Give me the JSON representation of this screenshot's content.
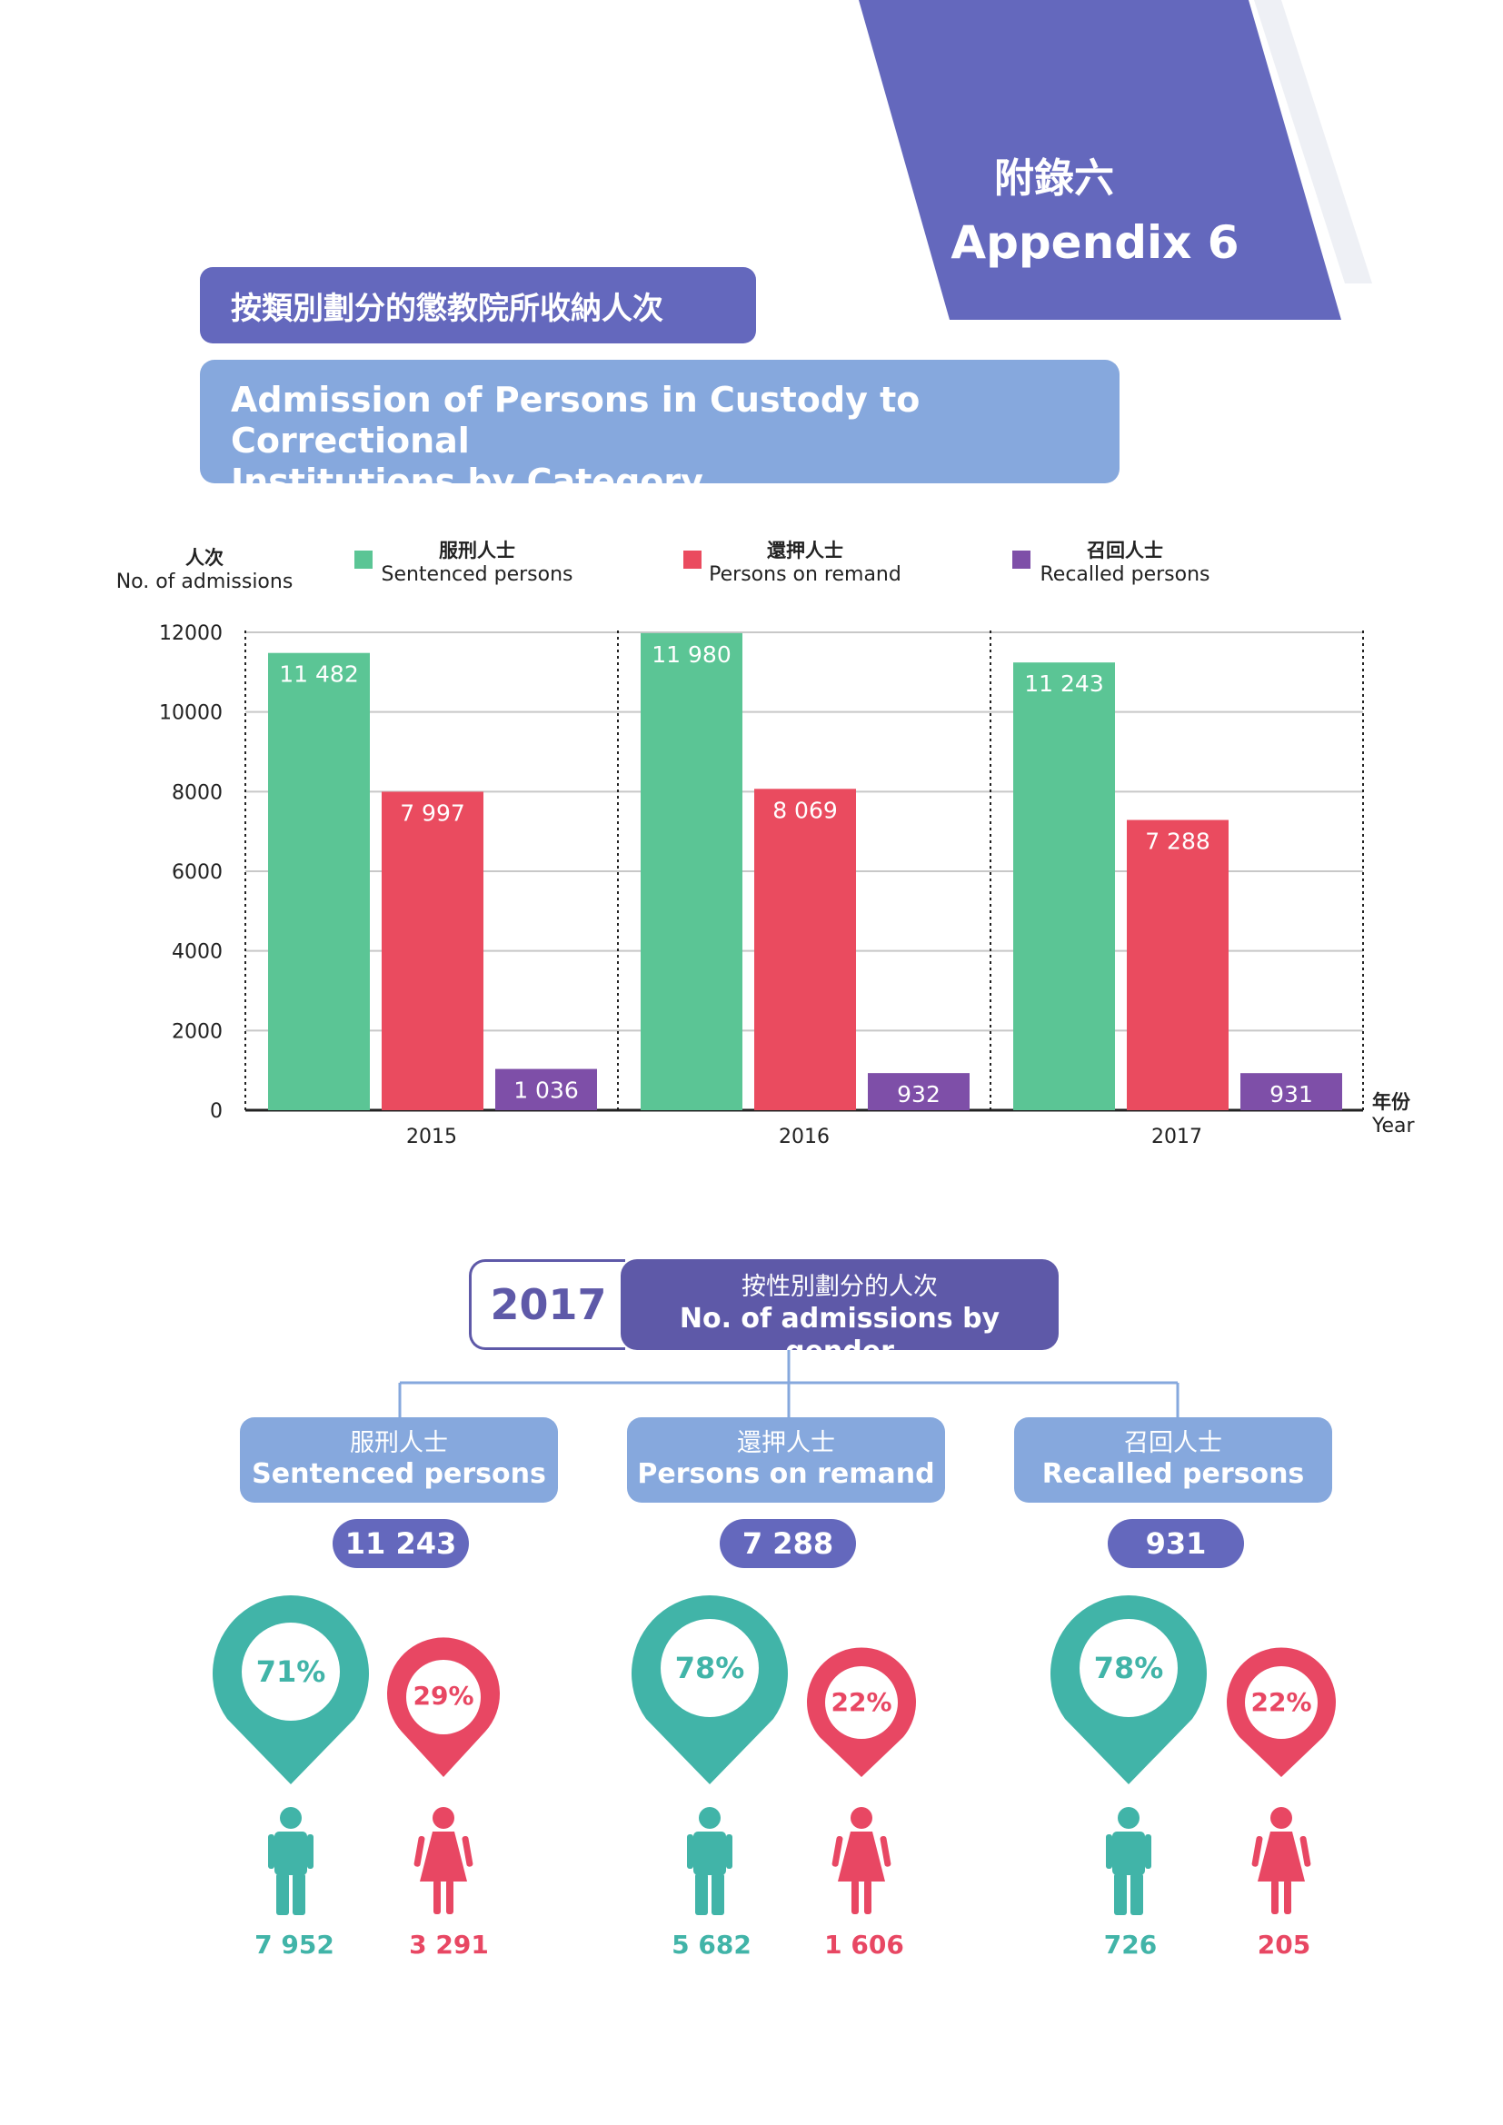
{
  "appendix": {
    "zh": "附錄六",
    "en": "Appendix 6"
  },
  "title": {
    "zh": "按類別劃分的懲教院所收納人次",
    "en_line1": "Admission of Persons in Custody to Correctional",
    "en_line2": "Institutions by Category"
  },
  "colors": {
    "sentenced": "#5bc595",
    "remand": "#ea4b5f",
    "recalled": "#7e4fa8",
    "male": "#41b4a8",
    "female": "#e84763",
    "accent": "#6468bd"
  },
  "chart_data": {
    "type": "bar",
    "title": "Admission of Persons in Custody to Correctional Institutions by Category",
    "ylabel_zh": "人次",
    "ylabel": "No. of admissions",
    "xlabel_zh": "年份",
    "xlabel": "Year",
    "ylim": [
      0,
      12000
    ],
    "yticks": [
      "12000",
      "10000",
      "8000",
      "6000",
      "4000",
      "2000",
      "0"
    ],
    "categories": [
      "2015",
      "2016",
      "2017"
    ],
    "series": [
      {
        "name_zh": "服刑人士",
        "name": "Sentenced persons",
        "values": [
          11482,
          11980,
          11243
        ],
        "labels": [
          "11 482",
          "11 980",
          "11 243"
        ]
      },
      {
        "name_zh": "還押人士",
        "name": "Persons on remand",
        "values": [
          7997,
          8069,
          7288
        ],
        "labels": [
          "7 997",
          "8 069",
          "7 288"
        ]
      },
      {
        "name_zh": "召回人士",
        "name": "Recalled persons",
        "values": [
          1036,
          932,
          931
        ],
        "labels": [
          "1 036",
          "932",
          "931"
        ]
      }
    ]
  },
  "gender": {
    "year": "2017",
    "label_zh": "按性別劃分的人次",
    "label_en": "No. of admissions by gender",
    "groups": [
      {
        "zh": "服刑人士",
        "en": "Sentenced persons",
        "total": "11 243",
        "male_pct": "71%",
        "female_pct": "29%",
        "male": "7 952",
        "female": "3 291"
      },
      {
        "zh": "還押人士",
        "en": "Persons on remand",
        "total": "7 288",
        "male_pct": "78%",
        "female_pct": "22%",
        "male": "5 682",
        "female": "1 606"
      },
      {
        "zh": "召回人士",
        "en": "Recalled persons",
        "total": "931",
        "male_pct": "78%",
        "female_pct": "22%",
        "male": "726",
        "female": "205"
      }
    ]
  }
}
